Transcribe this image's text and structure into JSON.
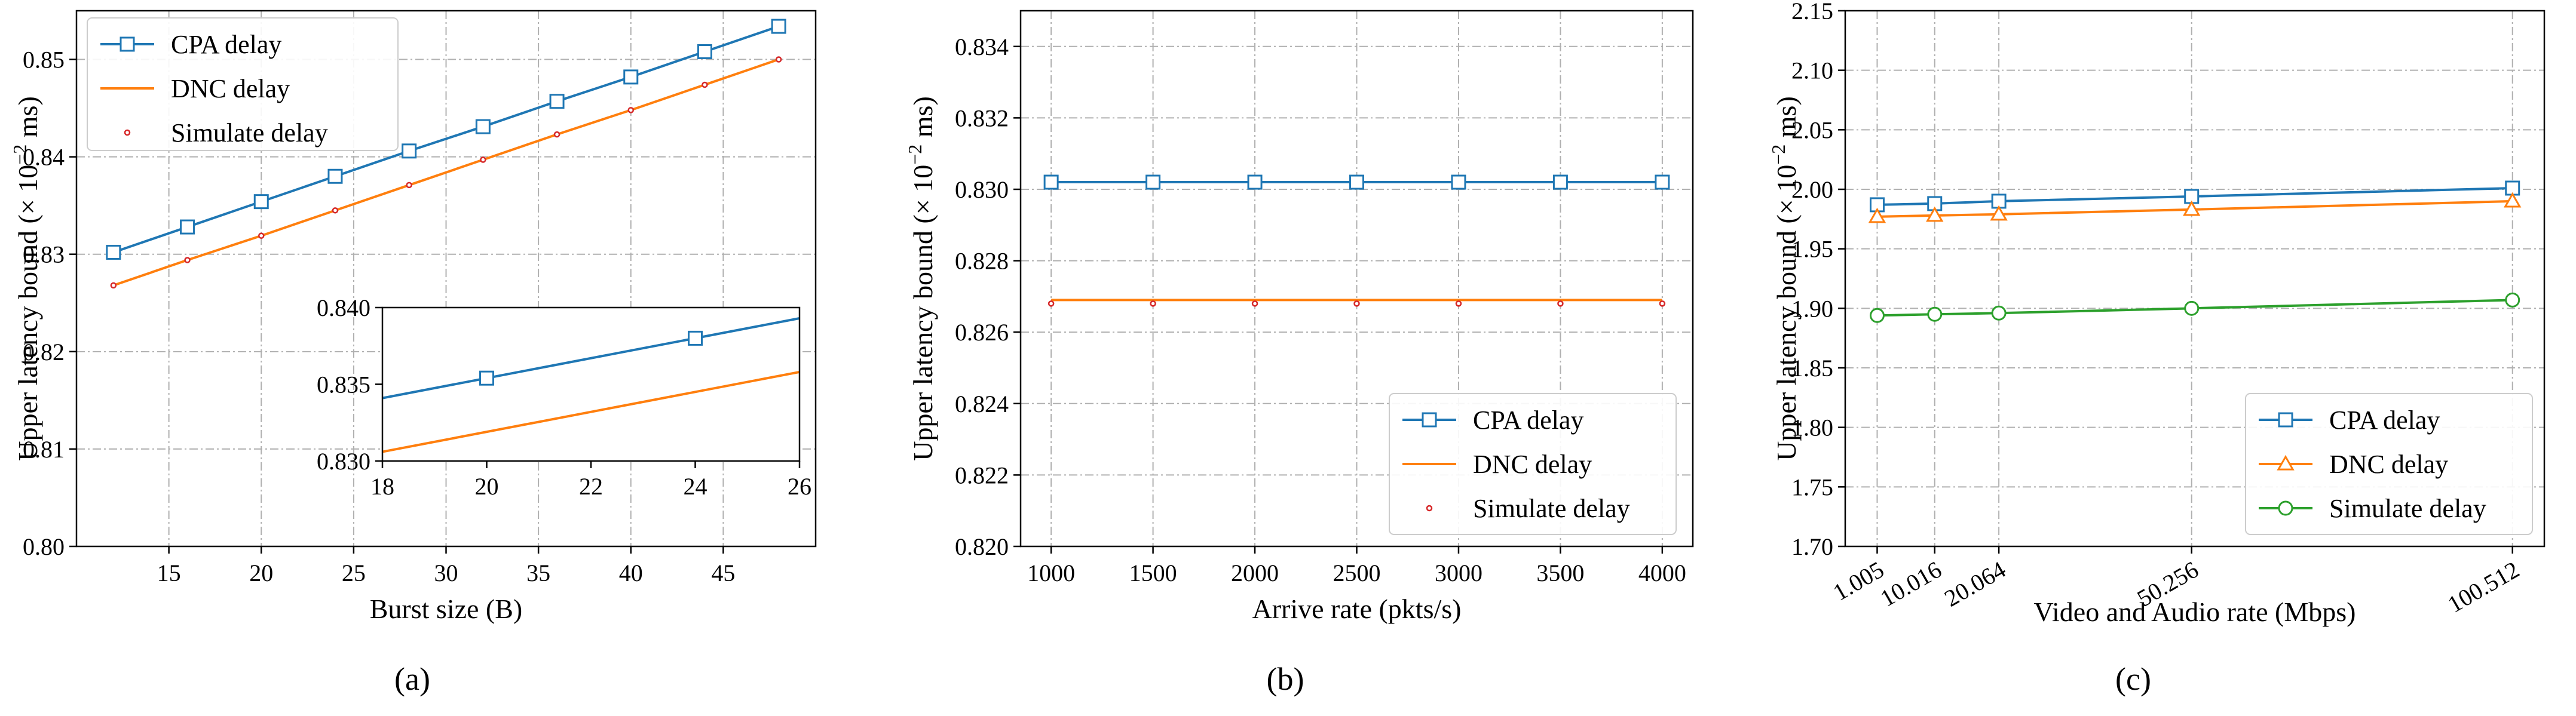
{
  "colors": {
    "cpa": "#1f77b4",
    "dnc": "#ff7f0e",
    "sim": "#d62728",
    "sim_c": "#2ca02c"
  },
  "captions": {
    "a": "(a)",
    "b": "(b)",
    "c": "(c)"
  },
  "chart_data": [
    {
      "id": "a",
      "type": "line",
      "xlabel": "Burst size (B)",
      "ylabel_main": "Upper latency bound (× 10",
      "ylabel_exp": "−2",
      "ylabel_tail": " ms)",
      "xlim": [
        10,
        50
      ],
      "ylim": [
        0.8,
        0.855
      ],
      "xticks": [
        15,
        20,
        25,
        30,
        35,
        40,
        45
      ],
      "xticklabels": [
        "15",
        "20",
        "25",
        "30",
        "35",
        "40",
        "45"
      ],
      "yticks": [
        0.8,
        0.81,
        0.82,
        0.83,
        0.84,
        0.85
      ],
      "yticklabels": [
        "0.80",
        "0.81",
        "0.82",
        "0.83",
        "0.84",
        "0.85"
      ],
      "legend": {
        "location": "upper-left",
        "entries": [
          "CPA delay",
          "DNC delay",
          "Simulate delay"
        ]
      },
      "series": [
        {
          "name": "CPA delay",
          "style": "line-square",
          "x": [
            12,
            16,
            20,
            24,
            28,
            32,
            36,
            40,
            44,
            48
          ],
          "y": [
            0.8302,
            0.8328,
            0.8354,
            0.838,
            0.8406,
            0.8431,
            0.8457,
            0.8482,
            0.8508,
            0.8534
          ]
        },
        {
          "name": "DNC delay",
          "style": "line",
          "x": [
            12,
            16,
            20,
            24,
            28,
            32,
            36,
            40,
            44,
            48
          ],
          "y": [
            0.8268,
            0.8294,
            0.8319,
            0.8345,
            0.8371,
            0.8397,
            0.8423,
            0.8448,
            0.8474,
            0.85
          ]
        },
        {
          "name": "Simulate delay",
          "style": "dot",
          "x": [
            12,
            16,
            20,
            24,
            28,
            32,
            36,
            40,
            44,
            48
          ],
          "y": [
            0.8268,
            0.8294,
            0.8319,
            0.8345,
            0.8371,
            0.8397,
            0.8423,
            0.8448,
            0.8474,
            0.85
          ]
        }
      ],
      "inset": {
        "xlim": [
          18,
          26
        ],
        "ylim": [
          0.83,
          0.84
        ],
        "xticks": [
          18,
          20,
          22,
          24,
          26
        ],
        "xticklabels": [
          "18",
          "20",
          "22",
          "24",
          "26"
        ],
        "yticks": [
          0.83,
          0.835,
          0.84
        ],
        "yticklabels": [
          "0.830",
          "0.835",
          "0.840"
        ],
        "series": [
          {
            "name": "CPA delay",
            "style": "line",
            "x": [
              18,
              26
            ],
            "y": [
              0.8341,
              0.8393
            ],
            "markers": [
              [
                20,
                0.8354
              ],
              [
                24,
                0.838
              ]
            ]
          },
          {
            "name": "DNC delay",
            "style": "line",
            "x": [
              18,
              26
            ],
            "y": [
              0.8306,
              0.8358
            ],
            "markers": []
          }
        ]
      }
    },
    {
      "id": "b",
      "type": "line",
      "xlabel": "Arrive rate (pkts/s)",
      "ylabel_main": "Upper latency bound (× 10",
      "ylabel_exp": "−2",
      "ylabel_tail": " ms)",
      "xlim": [
        850,
        4150
      ],
      "ylim": [
        0.82,
        0.835
      ],
      "xticks": [
        1000,
        1500,
        2000,
        2500,
        3000,
        3500,
        4000
      ],
      "xticklabels": [
        "1000",
        "1500",
        "2000",
        "2500",
        "3000",
        "3500",
        "4000"
      ],
      "yticks": [
        0.82,
        0.822,
        0.824,
        0.826,
        0.828,
        0.83,
        0.832,
        0.834
      ],
      "yticklabels": [
        "0.820",
        "0.822",
        "0.824",
        "0.826",
        "0.828",
        "0.830",
        "0.832",
        "0.834"
      ],
      "legend": {
        "location": "lower-right",
        "entries": [
          "CPA delay",
          "DNC delay",
          "Simulate delay"
        ]
      },
      "series": [
        {
          "name": "CPA delay",
          "style": "line-square",
          "x": [
            1000,
            1500,
            2000,
            2500,
            3000,
            3500,
            4000
          ],
          "y": [
            0.8302,
            0.8302,
            0.8302,
            0.8302,
            0.8302,
            0.8302,
            0.8302
          ]
        },
        {
          "name": "DNC delay",
          "style": "line",
          "x": [
            1000,
            1500,
            2000,
            2500,
            3000,
            3500,
            4000
          ],
          "y": [
            0.8269,
            0.8269,
            0.8269,
            0.8269,
            0.8269,
            0.8269,
            0.8269
          ]
        },
        {
          "name": "Simulate delay",
          "style": "dot",
          "x": [
            1000,
            1500,
            2000,
            2500,
            3000,
            3500,
            4000
          ],
          "y": [
            0.8268,
            0.8268,
            0.8268,
            0.8268,
            0.8268,
            0.8268,
            0.8268
          ]
        }
      ]
    },
    {
      "id": "c",
      "type": "line",
      "xlabel": "Video and Audio rate (Mbps)",
      "ylabel_main": "Upper latency bound (× 10",
      "ylabel_exp": "−2",
      "ylabel_tail": " ms)",
      "xlim": [
        -4,
        105.5
      ],
      "ylim": [
        1.7,
        2.15
      ],
      "xticks": [
        1.005,
        10.016,
        20.064,
        50.256,
        100.512
      ],
      "xticklabels": [
        "1.005",
        "10.016",
        "20.064",
        "50.256",
        "100.512"
      ],
      "yticks": [
        1.7,
        1.75,
        1.8,
        1.85,
        1.9,
        1.95,
        2.0,
        2.05,
        2.1,
        2.15
      ],
      "yticklabels": [
        "1.70",
        "1.75",
        "1.80",
        "1.85",
        "1.90",
        "1.95",
        "2.00",
        "2.05",
        "2.10",
        "2.15"
      ],
      "legend": {
        "location": "lower-right",
        "entries": [
          "CPA delay",
          "DNC delay",
          "Simulate delay"
        ]
      },
      "series": [
        {
          "name": "CPA delay",
          "style": "line-square",
          "x": [
            1.005,
            10.016,
            20.064,
            50.256,
            100.512
          ],
          "y": [
            1.987,
            1.988,
            1.99,
            1.994,
            2.001
          ]
        },
        {
          "name": "DNC delay",
          "style": "line-triangle",
          "x": [
            1.005,
            10.016,
            20.064,
            50.256,
            100.512
          ],
          "y": [
            1.977,
            1.978,
            1.979,
            1.983,
            1.99
          ]
        },
        {
          "name": "Simulate delay",
          "style": "line-circle",
          "x": [
            1.005,
            10.016,
            20.064,
            50.256,
            100.512
          ],
          "y": [
            1.894,
            1.895,
            1.896,
            1.9,
            1.907
          ]
        }
      ]
    }
  ]
}
